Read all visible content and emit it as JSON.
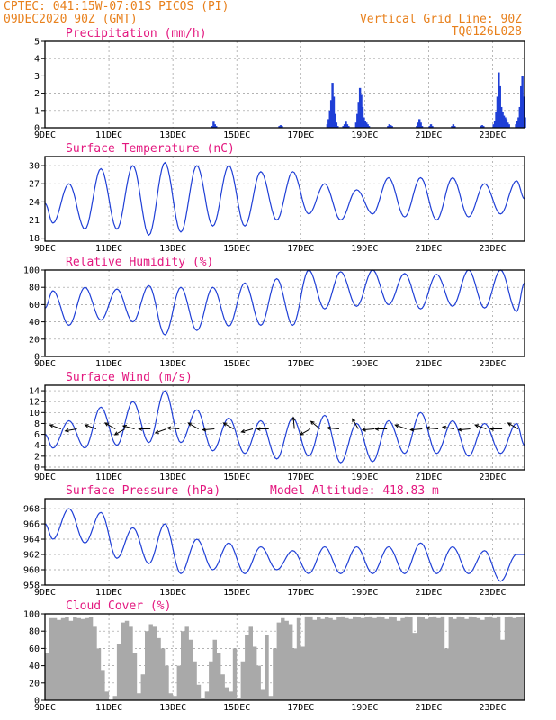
{
  "header": {
    "left_line1": "CPTEC:   041:15W-07:01S  PICOS (PI)",
    "left_line2": "09DEC2020 90Z (GMT)",
    "right_line1": "Vertical Grid Line: 90Z",
    "right_line2": "TQ0126L028"
  },
  "colors": {
    "header": "#e8801c",
    "panel_title": "#e3177f",
    "line": "#1f3fd6",
    "bars": "#1f3fd6",
    "cloud": "#a9a9a9",
    "arrows": "#000000"
  },
  "chart_data": [
    {
      "type": "bar",
      "title": "Precipitation (mm/h)",
      "x_tick_labels": [
        "9DEC",
        "11DEC",
        "13DEC",
        "15DEC",
        "17DEC",
        "19DEC",
        "21DEC",
        "23DEC"
      ],
      "xlim_days": [
        9,
        24
      ],
      "ylim": [
        0,
        5
      ],
      "y_ticks": [
        0,
        1,
        2,
        3,
        4,
        5
      ],
      "grid": true,
      "events": [
        {
          "day": 14.2,
          "values": [
            0.1,
            0.35,
            0.2,
            0.1
          ]
        },
        {
          "day": 16.3,
          "values": [
            0.1,
            0.15,
            0.1
          ]
        },
        {
          "day": 17.8,
          "values": [
            0.2,
            0.5,
            1.0,
            1.6,
            2.6,
            1.8,
            0.8,
            0.3,
            0.1
          ]
        },
        {
          "day": 18.3,
          "values": [
            0.1,
            0.2,
            0.35,
            0.2,
            0.1
          ]
        },
        {
          "day": 18.7,
          "values": [
            0.3,
            0.8,
            1.5,
            2.3,
            1.9,
            1.2,
            0.6,
            0.4,
            0.3,
            0.2,
            0.1
          ]
        },
        {
          "day": 19.7,
          "values": [
            0.1,
            0.2,
            0.15,
            0.1
          ]
        },
        {
          "day": 20.6,
          "values": [
            0.1,
            0.3,
            0.5,
            0.3,
            0.1
          ]
        },
        {
          "day": 21.0,
          "values": [
            0.1,
            0.2,
            0.1
          ]
        },
        {
          "day": 21.7,
          "values": [
            0.1,
            0.2,
            0.1
          ]
        },
        {
          "day": 22.6,
          "values": [
            0.1,
            0.15,
            0.1
          ]
        },
        {
          "day": 23.0,
          "values": [
            0.2,
            0.4,
            0.9,
            1.8,
            3.2,
            2.4,
            1.2,
            0.9,
            0.7,
            0.6,
            0.5,
            0.3,
            0.2
          ]
        },
        {
          "day": 23.7,
          "values": [
            0.2,
            0.4,
            0.6,
            1.2,
            2.4,
            3.0,
            1.8,
            0.6
          ]
        }
      ]
    },
    {
      "type": "line",
      "title": "Surface Temperature (nC)",
      "x_tick_labels": [
        "9DEC",
        "11DEC",
        "13DEC",
        "15DEC",
        "17DEC",
        "19DEC",
        "21DEC",
        "23DEC"
      ],
      "xlim_days": [
        9,
        24
      ],
      "ylim": [
        17.5,
        31.5
      ],
      "y_ticks": [
        18,
        21,
        24,
        27,
        30
      ],
      "grid": true,
      "daily_max": [
        27,
        29.5,
        30,
        30.5,
        30,
        30,
        29,
        29,
        27,
        26,
        28,
        28,
        28,
        27,
        27.5
      ],
      "daily_min": [
        20.5,
        19.5,
        19.5,
        18.5,
        19,
        20,
        20,
        21,
        22,
        21,
        22,
        21.5,
        21,
        21.5,
        22
      ],
      "end_value": 24.5
    },
    {
      "type": "line",
      "title": "Relative Humidity (%)",
      "x_tick_labels": [
        "9DEC",
        "11DEC",
        "13DEC",
        "15DEC",
        "17DEC",
        "19DEC",
        "21DEC",
        "23DEC"
      ],
      "xlim_days": [
        9,
        24
      ],
      "ylim": [
        0,
        100
      ],
      "y_ticks": [
        0,
        20,
        40,
        60,
        80,
        100
      ],
      "grid": true,
      "daily_max": [
        76,
        80,
        78,
        82,
        80,
        80,
        85,
        90,
        100,
        98,
        100,
        96,
        95,
        100,
        100
      ],
      "daily_min": [
        36,
        42,
        40,
        25,
        30,
        35,
        36,
        36,
        55,
        58,
        60,
        55,
        58,
        56,
        52
      ],
      "end_value": 85
    },
    {
      "type": "line",
      "title": "Surface Wind (m/s)",
      "x_tick_labels": [
        "9DEC",
        "11DEC",
        "13DEC",
        "15DEC",
        "17DEC",
        "19DEC",
        "21DEC",
        "23DEC"
      ],
      "xlim_days": [
        9,
        24
      ],
      "ylim": [
        -0.5,
        15
      ],
      "y_ticks": [
        0,
        2,
        4,
        6,
        8,
        10,
        12,
        14
      ],
      "grid": true,
      "daily_max": [
        8.5,
        11,
        12,
        14,
        10.5,
        9,
        8.5,
        9,
        9.5,
        8,
        8.5,
        10,
        8.5,
        8,
        8
      ],
      "daily_min": [
        3.5,
        3.5,
        4,
        4.5,
        4.5,
        3,
        2.5,
        1.5,
        2,
        0.8,
        1,
        2.5,
        2.5,
        2,
        2.5
      ],
      "end_value": 4,
      "arrows_days": [
        9.5,
        10.0,
        10.6,
        11.2,
        11.5,
        11.8,
        12.3,
        12.8,
        13.2,
        13.8,
        14.3,
        14.9,
        15.5,
        16.0,
        16.8,
        17.3,
        17.6,
        18.2,
        18.8,
        19.3,
        19.7,
        20.3,
        20.8,
        21.3,
        21.8,
        22.3,
        22.8,
        23.3,
        23.8
      ],
      "arrow_dirs_deg": [
        200,
        170,
        200,
        210,
        150,
        195,
        180,
        160,
        185,
        210,
        175,
        210,
        165,
        180,
        265,
        150,
        220,
        185,
        240,
        175,
        180,
        200,
        175,
        185,
        190,
        175,
        200,
        180,
        210
      ]
    },
    {
      "type": "line",
      "title": "Surface Pressure (hPa)",
      "annotation": "Model Altitude: 418.83 m",
      "x_tick_labels": [
        "9DEC",
        "11DEC",
        "13DEC",
        "15DEC",
        "17DEC",
        "19DEC",
        "21DEC",
        "23DEC"
      ],
      "xlim_days": [
        9,
        24
      ],
      "ylim": [
        958,
        969.3
      ],
      "y_ticks": [
        958,
        960,
        962,
        964,
        966,
        968
      ],
      "grid": true,
      "daily_max": [
        968,
        967.5,
        965.5,
        966,
        964,
        963.5,
        963,
        962.5,
        963,
        963,
        963,
        963.5,
        963,
        962.5,
        962
      ],
      "daily_min": [
        964,
        963.5,
        961.5,
        960.8,
        959.5,
        960,
        959.5,
        960,
        959.5,
        959.5,
        959.5,
        959.5,
        959.5,
        959.5,
        958.5
      ],
      "end_value": 962
    },
    {
      "type": "area",
      "title": "Cloud Cover (%)",
      "x_tick_labels": [
        "9DEC",
        "11DEC",
        "13DEC",
        "15DEC",
        "17DEC",
        "19DEC",
        "21DEC",
        "23DEC"
      ],
      "xlim_days": [
        9,
        24
      ],
      "ylim": [
        0,
        100
      ],
      "y_ticks": [
        0,
        20,
        40,
        60,
        80,
        100
      ],
      "grid": true,
      "samples_per_day": 8,
      "values": [
        55,
        95,
        95,
        93,
        95,
        96,
        92,
        96,
        95,
        94,
        95,
        96,
        85,
        60,
        35,
        10,
        0,
        5,
        65,
        90,
        92,
        85,
        55,
        8,
        30,
        80,
        88,
        85,
        72,
        60,
        40,
        8,
        5,
        40,
        80,
        85,
        70,
        45,
        18,
        3,
        10,
        45,
        70,
        55,
        30,
        15,
        10,
        60,
        3,
        45,
        75,
        85,
        62,
        40,
        12,
        75,
        5,
        60,
        90,
        95,
        92,
        88,
        60,
        95,
        62,
        97,
        97,
        93,
        96,
        94,
        96,
        95,
        93,
        96,
        97,
        95,
        94,
        97,
        96,
        95,
        96,
        97,
        95,
        97,
        96,
        94,
        97,
        96,
        92,
        95,
        97,
        96,
        78,
        97,
        96,
        94,
        96,
        97,
        95,
        97,
        60,
        96,
        94,
        97,
        96,
        94,
        97,
        96,
        95,
        93,
        96,
        97,
        95,
        97,
        70,
        96,
        97,
        95,
        96,
        97
      ]
    }
  ]
}
